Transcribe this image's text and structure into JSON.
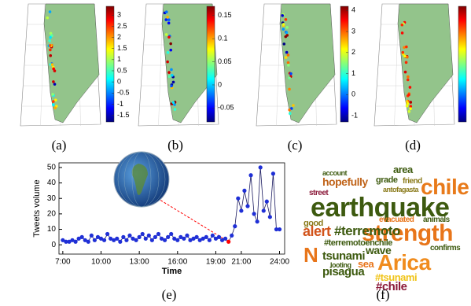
{
  "panels": [
    {
      "caption": "(a)",
      "colorbar": {
        "clim": [
          -1.8,
          3.4
        ],
        "ticks": [
          3,
          2.5,
          2,
          1.5,
          1,
          0.5,
          0,
          -0.5,
          -1,
          -1.5
        ]
      }
    },
    {
      "caption": "(b)",
      "colorbar": {
        "clim": [
          -0.08,
          0.17
        ],
        "ticks": [
          0.15,
          0.1,
          0.05,
          0,
          -0.05
        ]
      }
    },
    {
      "caption": "(c)",
      "colorbar": {
        "clim": [
          -1.3,
          4.2
        ],
        "ticks": [
          4,
          3,
          2,
          1,
          0,
          -1
        ]
      }
    },
    {
      "caption": "(d)"
    }
  ],
  "chart_data": {
    "type": "line",
    "caption": "(e)",
    "xlabel": "Time",
    "ylabel": "Tweets volume",
    "x": [
      7,
      7.25,
      7.5,
      7.75,
      8,
      8.25,
      8.5,
      8.75,
      9,
      9.25,
      9.5,
      9.75,
      10,
      10.25,
      10.5,
      10.75,
      11,
      11.25,
      11.5,
      11.75,
      12,
      12.25,
      12.5,
      12.75,
      13,
      13.25,
      13.5,
      13.75,
      14,
      14.25,
      14.5,
      14.75,
      15,
      15.25,
      15.5,
      15.75,
      16,
      16.25,
      16.5,
      16.75,
      17,
      17.25,
      17.5,
      17.75,
      18,
      18.25,
      18.5,
      18.75,
      19,
      19.25,
      19.5,
      19.75,
      20,
      20.25,
      20.5,
      20.75,
      21,
      21.25,
      21.5,
      21.75,
      22,
      22.25,
      22.5,
      22.75,
      23,
      23.25,
      23.5,
      23.75,
      24
    ],
    "values": [
      3,
      2,
      2,
      3,
      2,
      4,
      5,
      3,
      2,
      6,
      3,
      5,
      4,
      3,
      7,
      4,
      3,
      4,
      2,
      5,
      3,
      6,
      4,
      3,
      5,
      7,
      4,
      6,
      3,
      5,
      7,
      4,
      3,
      5,
      7,
      4,
      3,
      5,
      4,
      6,
      3,
      4,
      5,
      3,
      4,
      5,
      3,
      6,
      4,
      5,
      3,
      4,
      2,
      6,
      12,
      30,
      22,
      35,
      25,
      45,
      20,
      15,
      50,
      22,
      28,
      18,
      46,
      10,
      10
    ],
    "color": "#1f2fd6",
    "line_color": "#1a1a60",
    "highlight": {
      "index": 52,
      "color": "#ff0000"
    },
    "xlim": [
      6.7,
      24.4
    ],
    "xticks": [
      {
        "value": 7,
        "label": "7:00"
      },
      {
        "value": 10,
        "label": "10:00"
      },
      {
        "value": 13,
        "label": "13:00"
      },
      {
        "value": 16,
        "label": "16:00"
      },
      {
        "value": 19,
        "label": "19:00"
      },
      {
        "value": 21,
        "label": "21:00"
      },
      {
        "value": 24,
        "label": "24:00"
      }
    ],
    "ylim": [
      -6,
      53
    ],
    "yticks": [
      0,
      10,
      20,
      30,
      40,
      50
    ]
  },
  "word_cloud": {
    "caption": "(f)",
    "words": [
      {
        "text": "earthquake",
        "color": "#3d5a0f"
      },
      {
        "text": "strength",
        "color": "#e8751a"
      },
      {
        "text": "chile",
        "color": "#e87a1a"
      },
      {
        "text": "Arica",
        "color": "#f08c1e"
      },
      {
        "text": "alert",
        "color": "#d2531a"
      },
      {
        "text": "#terremoto",
        "color": "#3d5a0f"
      },
      {
        "text": "N",
        "color": "#e8751a"
      },
      {
        "text": "#terremotoenchile",
        "color": "#3d5a0f"
      },
      {
        "text": "tsunami",
        "color": "#3d5a0f"
      },
      {
        "text": "pisagua",
        "color": "#3d5a0f"
      },
      {
        "text": "#tsunami",
        "color": "#f0c419"
      },
      {
        "text": "#chile",
        "color": "#8b1a3a"
      },
      {
        "text": "hopefully",
        "color": "#c0641a"
      },
      {
        "text": "good",
        "color": "#8a7a1a"
      },
      {
        "text": "street",
        "color": "#8b1a3a"
      },
      {
        "text": "wave",
        "color": "#3d5a0f"
      },
      {
        "text": "sea",
        "color": "#e8751a"
      },
      {
        "text": "looting",
        "color": "#3d5a0f"
      },
      {
        "text": "evacuated",
        "color": "#e8751a"
      },
      {
        "text": "animals",
        "color": "#3d5a0f"
      },
      {
        "text": "grade",
        "color": "#3d5a0f"
      },
      {
        "text": "antofagasta",
        "color": "#8a7a1a"
      },
      {
        "text": "area",
        "color": "#3d5a0f"
      },
      {
        "text": "account",
        "color": "#3d5a0f"
      },
      {
        "text": "confirms",
        "color": "#3d5a0f"
      },
      {
        "text": "friend",
        "color": "#8a7a1a"
      }
    ]
  }
}
